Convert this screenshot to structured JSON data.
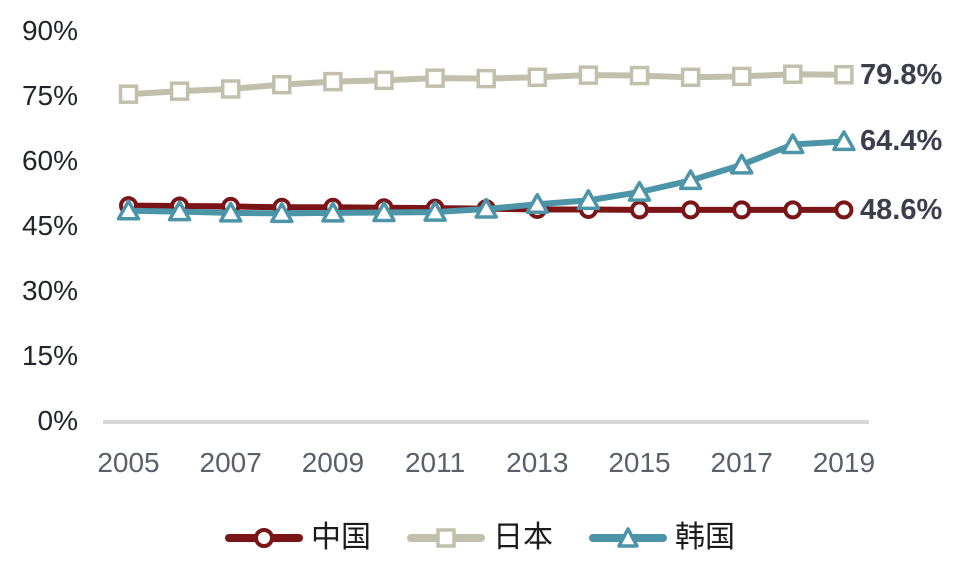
{
  "chart_data": {
    "type": "line",
    "title": "",
    "xlabel": "",
    "ylabel": "",
    "x": [
      2005,
      2006,
      2007,
      2008,
      2009,
      2010,
      2011,
      2012,
      2013,
      2014,
      2015,
      2016,
      2017,
      2018,
      2019
    ],
    "x_tick_labels": [
      "2005",
      "2007",
      "2009",
      "2011",
      "2013",
      "2015",
      "2017",
      "2019"
    ],
    "y_tick_labels": [
      "0%",
      "15%",
      "30%",
      "45%",
      "60%",
      "75%",
      "90%"
    ],
    "ylim": [
      0,
      90
    ],
    "y_tick_step": 15,
    "grid": "off",
    "legend_position": "bottom",
    "axis_color": "#D8D8D8",
    "y_tick_color": "#22252B",
    "x_tick_color": "#5A6069",
    "end_label_color": "#3A3E4D",
    "series": [
      {
        "id": "china",
        "name": "中国",
        "color": "#7B1416",
        "marker": "circle",
        "values": [
          49.6,
          49.5,
          49.4,
          49.2,
          49.2,
          49.1,
          49.0,
          48.9,
          48.7,
          48.7,
          48.6,
          48.6,
          48.6,
          48.6,
          48.6
        ],
        "end_label": "48.6%"
      },
      {
        "id": "japan",
        "name": "日本",
        "color": "#C2BFAC",
        "marker": "square",
        "values": [
          75.3,
          76.0,
          76.5,
          77.5,
          78.2,
          78.5,
          79.0,
          78.9,
          79.2,
          79.7,
          79.6,
          79.2,
          79.4,
          79.9,
          79.8
        ],
        "end_label": "79.8%"
      },
      {
        "id": "korea",
        "name": "韩国",
        "color": "#4C94A8",
        "marker": "triangle",
        "values": [
          48.4,
          48.2,
          47.9,
          47.8,
          47.9,
          48.0,
          48.1,
          48.8,
          49.9,
          50.8,
          52.7,
          55.4,
          59.0,
          63.7,
          64.4
        ],
        "end_label": "64.4%"
      }
    ]
  }
}
